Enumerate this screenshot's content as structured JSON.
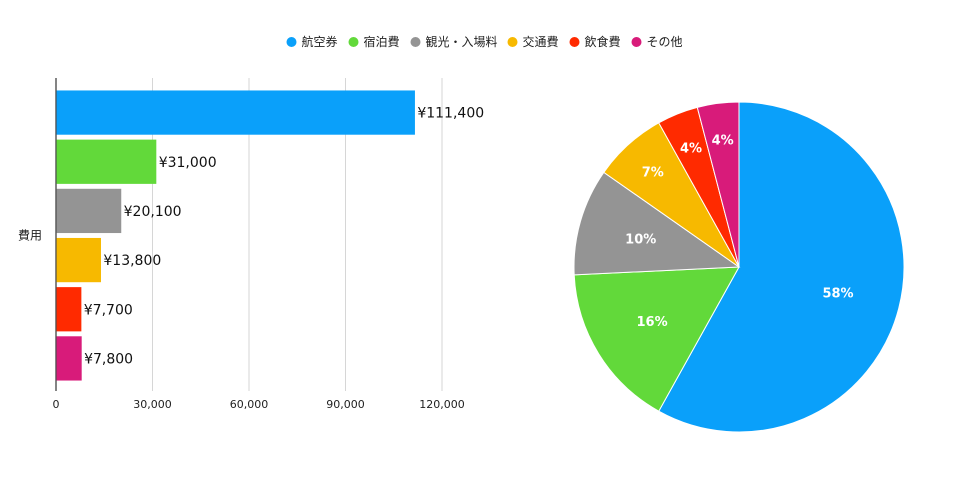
{
  "chart_data": [
    {
      "type": "bar",
      "orientation": "horizontal",
      "ylabel": "費用",
      "categories": [
        "航空券",
        "宿泊費",
        "観光・入場料",
        "交通費",
        "飲食費",
        "その他"
      ],
      "values": [
        111400,
        31000,
        20100,
        13800,
        7700,
        7800
      ],
      "value_labels": [
        "¥111,400",
        "¥31,000",
        "¥20,100",
        "¥13,800",
        "¥7,700",
        "¥7,800"
      ],
      "xlim": [
        0,
        150000
      ],
      "xticks": [
        0,
        30000,
        60000,
        90000,
        120000
      ],
      "xtick_labels": [
        "0",
        "30,000",
        "60,000",
        "90,000",
        "120,000"
      ],
      "grid": true
    },
    {
      "type": "pie",
      "categories": [
        "航空券",
        "宿泊費",
        "観光・入場料",
        "交通費",
        "飲食費",
        "その他"
      ],
      "values": [
        111400,
        31000,
        20100,
        13800,
        7700,
        7800
      ],
      "slice_labels": [
        "58%",
        "16%",
        "10%",
        "7%",
        "4%",
        "4%"
      ]
    }
  ],
  "legend": {
    "position": "top-center",
    "items": [
      {
        "label": "航空券",
        "color": "#0aa0fa"
      },
      {
        "label": "宿泊費",
        "color": "#62d93a"
      },
      {
        "label": "観光・入場料",
        "color": "#949494"
      },
      {
        "label": "交通費",
        "color": "#f7b900"
      },
      {
        "label": "飲食費",
        "color": "#ff2a00"
      },
      {
        "label": "その他",
        "color": "#d81b7a"
      }
    ]
  }
}
